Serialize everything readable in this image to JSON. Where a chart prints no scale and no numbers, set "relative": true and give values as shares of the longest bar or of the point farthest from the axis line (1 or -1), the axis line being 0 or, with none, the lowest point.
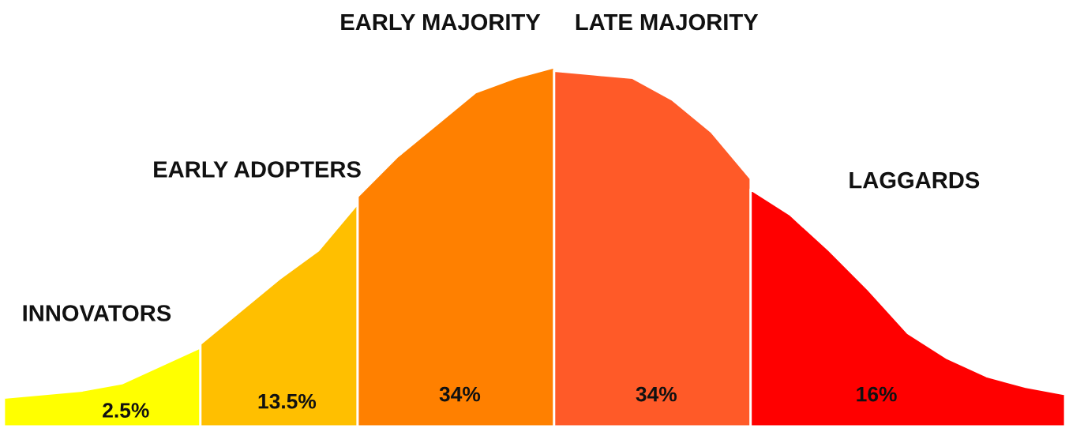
{
  "chart_data": {
    "type": "area",
    "relative": true,
    "categories": [
      null,
      null,
      null,
      null,
      null,
      null,
      null,
      null,
      null,
      null,
      null,
      null,
      null,
      null,
      null,
      null,
      null,
      null,
      null,
      null,
      null,
      null,
      null,
      null,
      null,
      null,
      null,
      null
    ],
    "series": [
      {
        "color": "#ffff00",
        "values": [
          0.08,
          0.09,
          0.1,
          0.12,
          0.17,
          0.22,
          null,
          null,
          null,
          null,
          null,
          null,
          null,
          null,
          null,
          null,
          null,
          null,
          null,
          null,
          null,
          null,
          null,
          null,
          null,
          null,
          null,
          null
        ]
      },
      {
        "color": "#ffbf00",
        "values": [
          null,
          null,
          null,
          null,
          null,
          0.23,
          0.32,
          0.41,
          0.49,
          0.62,
          null,
          null,
          null,
          null,
          null,
          null,
          null,
          null,
          null,
          null,
          null,
          null,
          null,
          null,
          null,
          null,
          null,
          null
        ]
      },
      {
        "color": "#ff8000",
        "values": [
          null,
          null,
          null,
          null,
          null,
          null,
          null,
          null,
          null,
          0.64,
          0.75,
          0.84,
          0.93,
          0.97,
          1.0,
          null,
          null,
          null,
          null,
          null,
          null,
          null,
          null,
          null,
          null,
          null,
          null,
          null
        ]
      },
      {
        "color": "#ff5a28",
        "values": [
          null,
          null,
          null,
          null,
          null,
          null,
          null,
          null,
          null,
          null,
          null,
          null,
          null,
          null,
          0.99,
          0.98,
          0.97,
          0.91,
          0.82,
          0.69,
          null,
          null,
          null,
          null,
          null,
          null,
          null,
          null
        ]
      },
      {
        "color": "#ff0000",
        "values": [
          null,
          null,
          null,
          null,
          null,
          null,
          null,
          null,
          null,
          null,
          null,
          null,
          null,
          null,
          null,
          null,
          null,
          null,
          null,
          0.66,
          0.59,
          0.49,
          0.38,
          0.26,
          0.19,
          0.14,
          0.11,
          0.09
        ]
      }
    ],
    "annotations": [
      "INNOVATORS",
      "EARLY ADOPTERS",
      "EARLY MAJORITY",
      "LATE MAJORITY",
      "LAGGARDS",
      "2.5%",
      "13.5%",
      "34%",
      "34%",
      "16%"
    ],
    "legend": false
  }
}
